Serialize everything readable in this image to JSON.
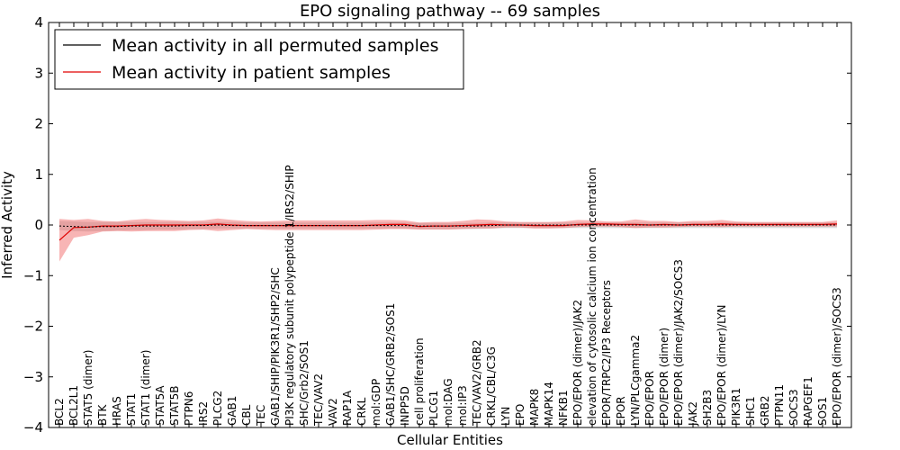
{
  "chart_data": {
    "type": "line",
    "title": "EPO signaling pathway -- 69 samples",
    "xlabel": "Cellular Entities",
    "ylabel": "Inferred Activity",
    "ylim": [
      -4,
      4
    ],
    "yticks": [
      4,
      3,
      2,
      1,
      0,
      -1,
      -2,
      -3,
      -4
    ],
    "ytick_labels": [
      "4",
      "3",
      "2",
      "1",
      "0",
      "−1",
      "−2",
      "−3",
      "−4"
    ],
    "grid": false,
    "legend_placement": "upper-left",
    "categories": [
      "BCL2",
      "BCL2L1",
      "STAT5 (dimer)",
      "BTK",
      "HRAS",
      "STAT1",
      "STAT1 (dimer)",
      "STAT5A",
      "STAT5B",
      "PTPN6",
      "IRS2",
      "PLCG2",
      "GAB1",
      "CBL",
      "TEC",
      "GAB1/SHIP/PIK3R1/SHP2/SHC",
      "PI3K regulatory subunit polypeptide 1/IRS2/SHIP",
      "SHC/Grb2/SOS1",
      "TEC/VAV2",
      "VAV2",
      "RAP1A",
      "CRKL",
      "mol:GDP",
      "GAB1/SHC/GRB2/SOS1",
      "INPP5D",
      "cell proliferation",
      "PLCG1",
      "mol:DAG",
      "mol:IP3",
      "TEC/VAV2/GRB2",
      "CRKL/CBL/C3G",
      "LYN",
      "EPO",
      "MAPK8",
      "MAPK14",
      "NFKB1",
      "EPO/EPOR (dimer)/JAK2",
      "elevation of cytosolic calcium ion concentration",
      "EPOR/TRPC2/IP3 Receptors",
      "EPOR",
      "LYN/PLCgamma2",
      "EPO/EPOR",
      "EPO/EPOR (dimer)",
      "EPO/EPOR (dimer)/JAK2/SOCS3",
      "JAK2",
      "SH2B3",
      "EPO/EPOR (dimer)/LYN",
      "PIK3R1",
      "SHC1",
      "GRB2",
      "PTPN11",
      "SOCS3",
      "RAPGEF1",
      "SOS1",
      "EPO/EPOR (dimer)/SOCS3"
    ],
    "series": [
      {
        "name": "Mean activity in all permuted samples",
        "color": "#000000",
        "values": [
          -0.02,
          -0.03,
          -0.04,
          -0.03,
          -0.03,
          -0.02,
          -0.02,
          -0.02,
          -0.02,
          -0.01,
          -0.01,
          0.0,
          -0.01,
          -0.01,
          -0.01,
          -0.01,
          -0.01,
          -0.01,
          -0.01,
          -0.01,
          -0.01,
          -0.01,
          -0.01,
          -0.01,
          -0.01,
          -0.02,
          -0.02,
          -0.02,
          -0.02,
          -0.02,
          -0.01,
          0.0,
          0.0,
          0.0,
          0.0,
          0.0,
          0.0,
          0.0,
          0.0,
          0.0,
          0.0,
          0.0,
          0.0,
          0.0,
          0.0,
          0.0,
          0.0,
          0.0,
          0.0,
          0.0,
          0.0,
          0.0,
          0.0,
          0.0,
          0.0
        ],
        "band_low": [
          -0.1,
          -0.12,
          -0.13,
          -0.12,
          -0.11,
          -0.1,
          -0.1,
          -0.09,
          -0.09,
          -0.08,
          -0.08,
          -0.07,
          -0.07,
          -0.07,
          -0.07,
          -0.07,
          -0.07,
          -0.07,
          -0.07,
          -0.07,
          -0.07,
          -0.07,
          -0.07,
          -0.07,
          -0.07,
          -0.08,
          -0.08,
          -0.08,
          -0.08,
          -0.08,
          -0.07,
          -0.06,
          -0.06,
          -0.06,
          -0.06,
          -0.06,
          -0.06,
          -0.06,
          -0.06,
          -0.06,
          -0.06,
          -0.06,
          -0.06,
          -0.06,
          -0.06,
          -0.06,
          -0.06,
          -0.06,
          -0.06,
          -0.06,
          -0.06,
          -0.06,
          -0.06,
          -0.06,
          -0.06
        ],
        "band_high": [
          0.08,
          0.07,
          0.06,
          0.06,
          0.06,
          0.06,
          0.06,
          0.06,
          0.06,
          0.06,
          0.06,
          0.06,
          0.06,
          0.05,
          0.05,
          0.05,
          0.05,
          0.05,
          0.05,
          0.05,
          0.05,
          0.05,
          0.05,
          0.05,
          0.05,
          0.04,
          0.04,
          0.04,
          0.04,
          0.04,
          0.05,
          0.05,
          0.05,
          0.05,
          0.05,
          0.05,
          0.05,
          0.05,
          0.05,
          0.05,
          0.05,
          0.05,
          0.05,
          0.05,
          0.05,
          0.05,
          0.05,
          0.05,
          0.05,
          0.05,
          0.05,
          0.05,
          0.05,
          0.05,
          0.05
        ]
      },
      {
        "name": "Mean activity in patient samples",
        "color": "#e00000",
        "values": [
          -0.3,
          -0.05,
          -0.04,
          -0.02,
          -0.02,
          -0.01,
          0.0,
          0.0,
          0.0,
          0.0,
          0.0,
          0.02,
          0.0,
          -0.01,
          -0.01,
          -0.01,
          -0.01,
          -0.01,
          -0.01,
          -0.01,
          -0.01,
          -0.01,
          0.0,
          0.01,
          0.01,
          -0.03,
          -0.02,
          -0.02,
          -0.01,
          0.0,
          0.01,
          0.0,
          0.0,
          -0.01,
          -0.01,
          -0.01,
          0.01,
          0.02,
          0.02,
          0.01,
          0.01,
          0.0,
          0.01,
          0.0,
          0.01,
          0.01,
          0.02,
          0.01,
          0.01,
          0.01,
          0.01,
          0.01,
          0.01,
          0.01,
          0.02
        ],
        "band_low": [
          -0.72,
          -0.25,
          -0.2,
          -0.13,
          -0.12,
          -0.13,
          -0.12,
          -0.12,
          -0.12,
          -0.1,
          -0.09,
          -0.12,
          -0.1,
          -0.08,
          -0.09,
          -0.1,
          -0.1,
          -0.1,
          -0.1,
          -0.1,
          -0.1,
          -0.1,
          -0.09,
          -0.08,
          -0.08,
          -0.09,
          -0.09,
          -0.09,
          -0.08,
          -0.07,
          -0.07,
          -0.05,
          -0.05,
          -0.07,
          -0.07,
          -0.06,
          -0.04,
          -0.03,
          -0.03,
          -0.04,
          -0.06,
          -0.05,
          -0.05,
          -0.04,
          -0.03,
          -0.03,
          -0.04,
          -0.03,
          -0.03,
          -0.03,
          -0.03,
          -0.03,
          -0.03,
          -0.03,
          -0.03
        ],
        "band_high": [
          0.12,
          0.1,
          0.12,
          0.08,
          0.07,
          0.1,
          0.12,
          0.1,
          0.09,
          0.08,
          0.09,
          0.13,
          0.1,
          0.08,
          0.07,
          0.08,
          0.09,
          0.09,
          0.09,
          0.09,
          0.09,
          0.09,
          0.1,
          0.1,
          0.09,
          0.05,
          0.06,
          0.06,
          0.08,
          0.11,
          0.1,
          0.07,
          0.06,
          0.06,
          0.06,
          0.07,
          0.1,
          0.09,
          0.07,
          0.07,
          0.11,
          0.08,
          0.08,
          0.06,
          0.08,
          0.08,
          0.1,
          0.07,
          0.06,
          0.06,
          0.06,
          0.06,
          0.06,
          0.06,
          0.09
        ]
      }
    ]
  }
}
